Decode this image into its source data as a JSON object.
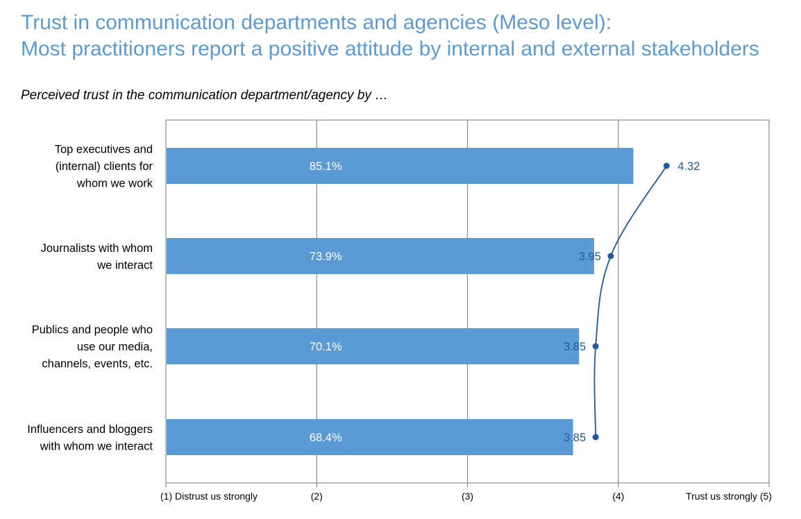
{
  "header": {
    "title_line1": "Trust in communication departments and agencies (Meso level):",
    "title_line2": "Most practitioners report a positive attitude by internal and external stakeholders",
    "subtitle": "Perceived trust in the communication department/agency by …"
  },
  "chart_data": {
    "type": "bar",
    "categories": [
      [
        "Top executives and",
        "(internal) clients for",
        "whom we work"
      ],
      [
        "Journalists with whom",
        "we interact"
      ],
      [
        "Publics and people who",
        "use our media,",
        "channels, events, etc."
      ],
      [
        "Influencers and bloggers",
        "with whom we interact"
      ]
    ],
    "series": [
      {
        "kind": "bar",
        "values": [
          4.1,
          3.84,
          3.74,
          3.7
        ],
        "labels": [
          "85.1%",
          "73.9%",
          "70.1%",
          "68.4%"
        ]
      },
      {
        "kind": "line",
        "values": [
          4.32,
          3.95,
          3.85,
          3.85
        ],
        "labels": [
          "4.32",
          "3.95",
          "3.85",
          "3.85"
        ]
      }
    ],
    "xlim": [
      1,
      5
    ],
    "xticks": [
      1,
      2,
      3,
      4,
      5
    ],
    "xtick_labels": [
      "(1) Distrust us strongly",
      "(2)",
      "(3)",
      "(4)",
      "Trust us strongly (5)"
    ],
    "grid": true,
    "colors": {
      "bar": "#5B9BD5",
      "bar_label": "#ffffff",
      "line": "#1F5A9E",
      "line_label": "#1F5A9E",
      "title": "#5B9BD5"
    }
  }
}
